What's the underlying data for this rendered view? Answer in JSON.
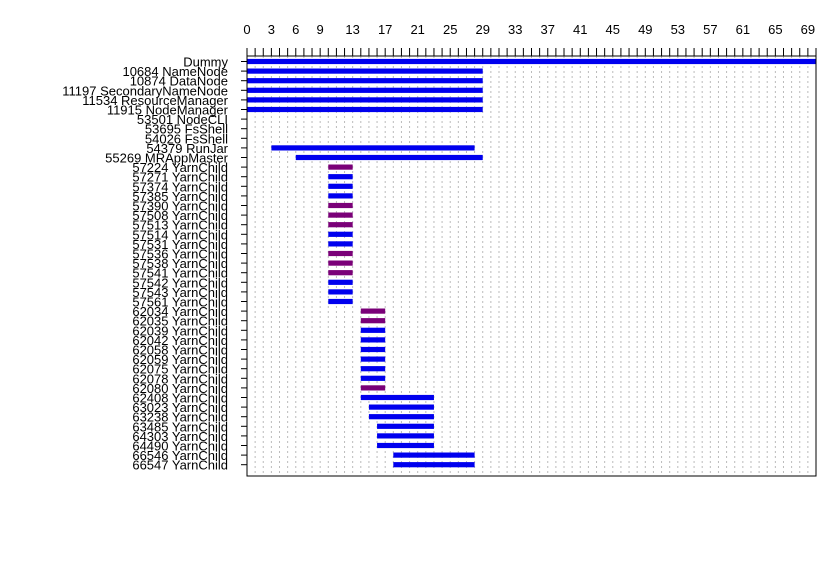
{
  "chart_data": {
    "type": "gantt",
    "title": "",
    "xlabel": "",
    "ylabel": "",
    "xlim": [
      0,
      70
    ],
    "x_ticks": [
      0,
      3,
      6,
      9,
      13,
      17,
      21,
      25,
      29,
      33,
      37,
      41,
      45,
      49,
      53,
      57,
      61,
      65,
      69
    ],
    "x_axis_position": "top",
    "grid": true,
    "grid_style": "dotted vertical",
    "colors": {
      "blue": "#0000ee",
      "purple": "#7a0078",
      "grid": "#bbbbbb",
      "axis": "#000000"
    },
    "rows": [
      {
        "label": "Dummy",
        "start": 0,
        "end": 70,
        "color": "blue"
      },
      {
        "label": "10684 NameNode",
        "start": 0,
        "end": 29,
        "color": "blue"
      },
      {
        "label": "10874 DataNode",
        "start": 0,
        "end": 29,
        "color": "blue"
      },
      {
        "label": "11197 SecondaryNameNode",
        "start": 0,
        "end": 29,
        "color": "blue"
      },
      {
        "label": "11534 ResourceManager",
        "start": 0,
        "end": 29,
        "color": "blue"
      },
      {
        "label": "11915 NodeManager",
        "start": 0,
        "end": 29,
        "color": "blue"
      },
      {
        "label": "53501 NodeCLI",
        "start": null,
        "end": null,
        "color": "blue"
      },
      {
        "label": "53695 FsShell",
        "start": null,
        "end": null,
        "color": "blue"
      },
      {
        "label": "54026 FsShell",
        "start": null,
        "end": null,
        "color": "blue"
      },
      {
        "label": "54379 RunJar",
        "start": 3,
        "end": 28,
        "color": "blue"
      },
      {
        "label": "55269 MRAppMaster",
        "start": 6,
        "end": 29,
        "color": "blue"
      },
      {
        "label": "57224 YarnChild",
        "start": 10,
        "end": 13,
        "color": "purple"
      },
      {
        "label": "57271 YarnChild",
        "start": 10,
        "end": 13,
        "color": "blue"
      },
      {
        "label": "57374 YarnChild",
        "start": 10,
        "end": 13,
        "color": "blue"
      },
      {
        "label": "57385 YarnChild",
        "start": 10,
        "end": 13,
        "color": "blue"
      },
      {
        "label": "57390 YarnChild",
        "start": 10,
        "end": 13,
        "color": "purple"
      },
      {
        "label": "57508 YarnChild",
        "start": 10,
        "end": 13,
        "color": "purple"
      },
      {
        "label": "57513 YarnChild",
        "start": 10,
        "end": 13,
        "color": "purple"
      },
      {
        "label": "57514 YarnChild",
        "start": 10,
        "end": 13,
        "color": "blue"
      },
      {
        "label": "57531 YarnChild",
        "start": 10,
        "end": 13,
        "color": "blue"
      },
      {
        "label": "57536 YarnChild",
        "start": 10,
        "end": 13,
        "color": "purple"
      },
      {
        "label": "57538 YarnChild",
        "start": 10,
        "end": 13,
        "color": "purple"
      },
      {
        "label": "57541 YarnChild",
        "start": 10,
        "end": 13,
        "color": "purple"
      },
      {
        "label": "57542 YarnChild",
        "start": 10,
        "end": 13,
        "color": "blue"
      },
      {
        "label": "57543 YarnChild",
        "start": 10,
        "end": 13,
        "color": "blue"
      },
      {
        "label": "57561 YarnChild",
        "start": 10,
        "end": 13,
        "color": "blue"
      },
      {
        "label": "62034 YarnChild",
        "start": 14,
        "end": 17,
        "color": "purple"
      },
      {
        "label": "62035 YarnChild",
        "start": 14,
        "end": 17,
        "color": "purple"
      },
      {
        "label": "62039 YarnChild",
        "start": 14,
        "end": 17,
        "color": "blue"
      },
      {
        "label": "62042 YarnChild",
        "start": 14,
        "end": 17,
        "color": "blue"
      },
      {
        "label": "62058 YarnChild",
        "start": 14,
        "end": 17,
        "color": "blue"
      },
      {
        "label": "62059 YarnChild",
        "start": 14,
        "end": 17,
        "color": "blue"
      },
      {
        "label": "62075 YarnChild",
        "start": 14,
        "end": 17,
        "color": "blue"
      },
      {
        "label": "62078 YarnChild",
        "start": 14,
        "end": 17,
        "color": "blue"
      },
      {
        "label": "62080 YarnChild",
        "start": 14,
        "end": 17,
        "color": "purple"
      },
      {
        "label": "62408 YarnChild",
        "start": 14,
        "end": 23,
        "color": "blue"
      },
      {
        "label": "63023 YarnChild",
        "start": 15,
        "end": 23,
        "color": "blue"
      },
      {
        "label": "63238 YarnChild",
        "start": 15,
        "end": 23,
        "color": "blue"
      },
      {
        "label": "63485 YarnChild",
        "start": 16,
        "end": 23,
        "color": "blue"
      },
      {
        "label": "64303 YarnChild",
        "start": 16,
        "end": 23,
        "color": "blue"
      },
      {
        "label": "64490 YarnChild",
        "start": 16,
        "end": 23,
        "color": "blue"
      },
      {
        "label": "66546 YarnChild",
        "start": 18,
        "end": 28,
        "color": "blue"
      },
      {
        "label": "66547 YarnChild",
        "start": 18,
        "end": 28,
        "color": "blue"
      }
    ]
  }
}
